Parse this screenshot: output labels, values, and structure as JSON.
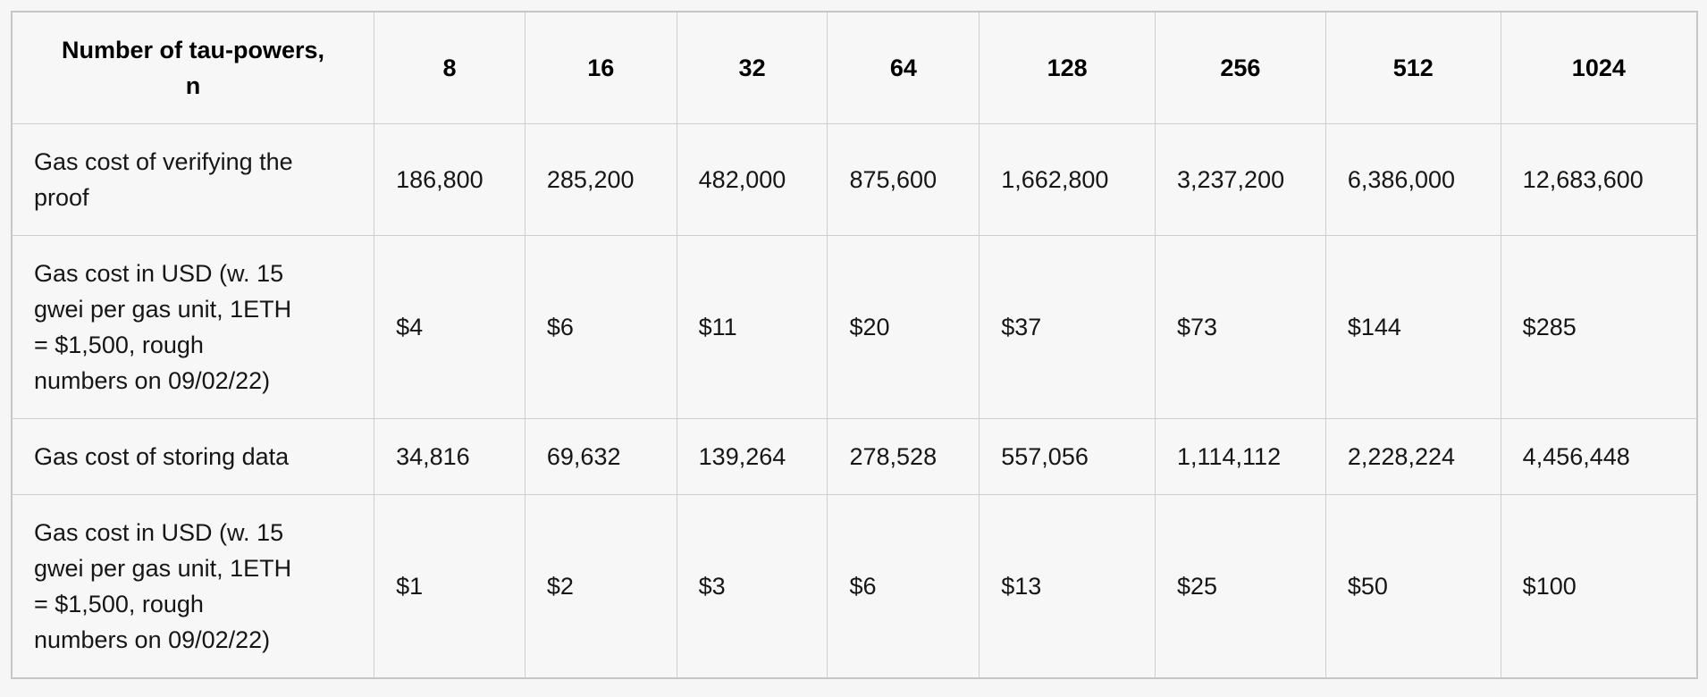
{
  "table": {
    "header": {
      "row_label": "Number of tau-powers,\nn",
      "columns": [
        "8",
        "16",
        "32",
        "64",
        "128",
        "256",
        "512",
        "1024"
      ]
    },
    "rows": [
      {
        "label": "Gas cost of verifying the\nproof",
        "values": [
          "186,800",
          "285,200",
          "482,000",
          "875,600",
          "1,662,800",
          "3,237,200",
          "6,386,000",
          "12,683,600"
        ]
      },
      {
        "label": "Gas cost in USD (w. 15\ngwei per gas unit, 1ETH\n= $1,500, rough\nnumbers on 09/02/22)",
        "values": [
          "$4",
          "$6",
          "$11",
          "$20",
          "$37",
          "$73",
          "$144",
          "$285"
        ]
      },
      {
        "label": "Gas cost of storing data",
        "values": [
          "34,816",
          "69,632",
          "139,264",
          "278,528",
          "557,056",
          "1,114,112",
          "2,228,224",
          "4,456,448"
        ]
      },
      {
        "label": "Gas cost in USD (w. 15\ngwei per gas unit, 1ETH\n= $1,500, rough\nnumbers on 09/02/22)",
        "values": [
          "$1",
          "$2",
          "$3",
          "$6",
          "$13",
          "$25",
          "$50",
          "$100"
        ]
      }
    ]
  },
  "colors": {
    "page_background": "#f6f6f6",
    "cell_background": "#f7f7f8",
    "grid_border": "#cfcfcf",
    "outer_border": "#c6c6c6",
    "text": "#161616",
    "header_text": "#000000"
  },
  "chart_data": {
    "type": "table",
    "title": "Gas costs by number of tau-powers n",
    "columns_n": [
      8,
      16,
      32,
      64,
      128,
      256,
      512,
      1024
    ],
    "rows": [
      {
        "name": "Gas cost of verifying the proof",
        "values": [
          186800,
          285200,
          482000,
          875600,
          1662800,
          3237200,
          6386000,
          12683600
        ]
      },
      {
        "name": "Gas cost in USD (w. 15 gwei per gas unit, 1ETH = $1,500, rough numbers on 09/02/22)",
        "values": [
          4,
          6,
          11,
          20,
          37,
          73,
          144,
          285
        ]
      },
      {
        "name": "Gas cost of storing data",
        "values": [
          34816,
          69632,
          139264,
          278528,
          557056,
          1114112,
          2228224,
          4456448
        ]
      },
      {
        "name": "Gas cost in USD (w. 15 gwei per gas unit, 1ETH = $1,500, rough numbers on 09/02/22)",
        "values": [
          1,
          2,
          3,
          6,
          13,
          25,
          50,
          100
        ]
      }
    ]
  }
}
